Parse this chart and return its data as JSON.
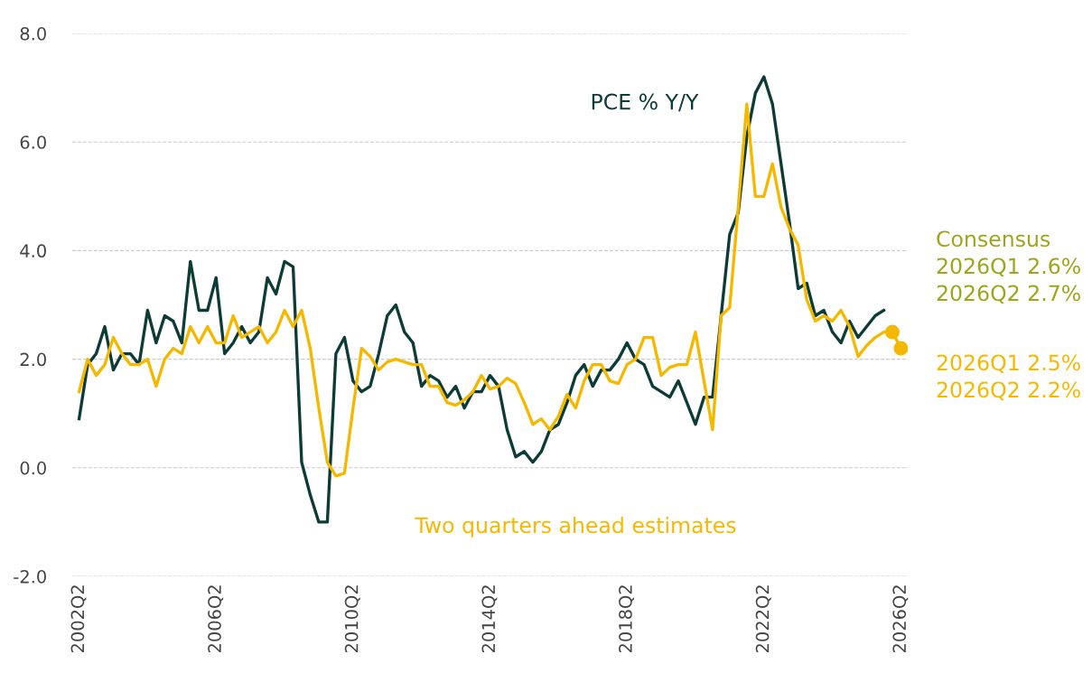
{
  "chart_data": {
    "type": "line",
    "categories": [
      "2002Q2",
      null,
      null,
      null,
      null,
      null,
      null,
      null,
      null,
      null,
      null,
      null,
      null,
      null,
      null,
      null,
      "2006Q2",
      null,
      null,
      null,
      null,
      null,
      null,
      null,
      null,
      null,
      null,
      null,
      null,
      null,
      null,
      null,
      "2010Q2",
      null,
      null,
      null,
      null,
      null,
      null,
      null,
      null,
      null,
      null,
      null,
      null,
      null,
      null,
      null,
      "2014Q2",
      null,
      null,
      null,
      null,
      null,
      null,
      null,
      null,
      null,
      null,
      null,
      null,
      null,
      null,
      null,
      "2018Q2",
      null,
      null,
      null,
      null,
      null,
      null,
      null,
      null,
      null,
      null,
      null,
      null,
      null,
      null,
      null,
      "2022Q2",
      null,
      null,
      null,
      null,
      null,
      null,
      null,
      null,
      null,
      null,
      null,
      null,
      null,
      null,
      null,
      "2026Q2"
    ],
    "series": [
      {
        "name": "PCE % Y/Y",
        "color": "#0d3b35",
        "values": [
          0.9,
          1.9,
          2.1,
          2.6,
          1.8,
          2.1,
          2.1,
          1.9,
          2.9,
          2.3,
          2.8,
          2.7,
          2.3,
          3.8,
          2.9,
          2.9,
          3.5,
          2.1,
          2.3,
          2.6,
          2.3,
          2.5,
          3.5,
          3.2,
          3.8,
          3.7,
          0.1,
          -0.5,
          -1.0,
          -1.0,
          2.1,
          2.4,
          1.6,
          1.4,
          1.5,
          2.1,
          2.8,
          3.0,
          2.5,
          2.3,
          1.5,
          1.7,
          1.6,
          1.3,
          1.5,
          1.1,
          1.4,
          1.4,
          1.7,
          1.5,
          0.7,
          0.2,
          0.3,
          0.1,
          0.3,
          0.7,
          0.8,
          1.2,
          1.7,
          1.9,
          1.5,
          1.8,
          1.8,
          2.0,
          2.3,
          2.0,
          1.9,
          1.5,
          1.4,
          1.3,
          1.6,
          1.2,
          0.8,
          1.3,
          1.3,
          2.8,
          4.3,
          4.7,
          6.1,
          6.9,
          7.2,
          6.7,
          5.6,
          4.5,
          3.3,
          3.4,
          2.8,
          2.9,
          2.5,
          2.3,
          2.7,
          2.4,
          2.6,
          2.8,
          2.9,
          null,
          null
        ]
      },
      {
        "name": "Two quarters ahead estimates",
        "color": "#f5b800",
        "values": [
          1.4,
          2.0,
          1.7,
          1.9,
          2.4,
          2.1,
          1.9,
          1.9,
          2.0,
          1.5,
          2.0,
          2.2,
          2.1,
          2.6,
          2.3,
          2.6,
          2.3,
          2.3,
          2.8,
          2.4,
          2.5,
          2.6,
          2.3,
          2.5,
          2.9,
          2.6,
          2.9,
          2.2,
          1.1,
          0.1,
          -0.15,
          -0.1,
          1.1,
          2.2,
          2.05,
          1.8,
          1.95,
          2.0,
          1.95,
          1.9,
          1.9,
          1.5,
          1.5,
          1.2,
          1.15,
          1.25,
          1.4,
          1.7,
          1.45,
          1.5,
          1.65,
          1.55,
          1.2,
          0.8,
          0.9,
          0.7,
          0.95,
          1.35,
          1.1,
          1.6,
          1.9,
          1.9,
          1.6,
          1.55,
          1.9,
          2.0,
          2.4,
          2.4,
          1.7,
          1.85,
          1.9,
          1.9,
          2.5,
          1.6,
          0.7,
          2.8,
          2.95,
          4.8,
          6.7,
          5.0,
          5.0,
          5.6,
          4.8,
          4.4,
          4.1,
          3.1,
          2.7,
          2.8,
          2.7,
          2.9,
          2.6,
          2.05,
          2.25,
          2.4,
          2.5,
          2.5,
          2.2
        ]
      },
      {
        "type": "scatter",
        "marker": "circle",
        "color": "#f5b800",
        "values": [
          null,
          null,
          null,
          null,
          null,
          null,
          null,
          null,
          null,
          null,
          null,
          null,
          null,
          null,
          null,
          null,
          null,
          null,
          null,
          null,
          null,
          null,
          null,
          null,
          null,
          null,
          null,
          null,
          null,
          null,
          null,
          null,
          null,
          null,
          null,
          null,
          null,
          null,
          null,
          null,
          null,
          null,
          null,
          null,
          null,
          null,
          null,
          null,
          null,
          null,
          null,
          null,
          null,
          null,
          null,
          null,
          null,
          null,
          null,
          null,
          null,
          null,
          null,
          null,
          null,
          null,
          null,
          null,
          null,
          null,
          null,
          null,
          null,
          null,
          null,
          null,
          null,
          null,
          null,
          null,
          null,
          null,
          null,
          null,
          null,
          null,
          null,
          null,
          null,
          null,
          null,
          null,
          null,
          null,
          null,
          2.5,
          2.2
        ]
      }
    ],
    "ylim": [
      -2,
      8
    ],
    "yticks": [
      {
        "value": -2,
        "label": "-2.0"
      },
      {
        "value": 0,
        "label": "0.0"
      },
      {
        "value": 2,
        "label": "2.0"
      },
      {
        "value": 4,
        "label": "4.0"
      },
      {
        "value": 6,
        "label": "6.0"
      },
      {
        "value": 8,
        "label": "8.0"
      }
    ],
    "grid": "y",
    "legend": false,
    "annotations": [
      "Consensus\n2026Q1 2.6%\n2026Q2 2.7%",
      "2026Q1 2.5%\n2026Q2 2.2%"
    ]
  }
}
